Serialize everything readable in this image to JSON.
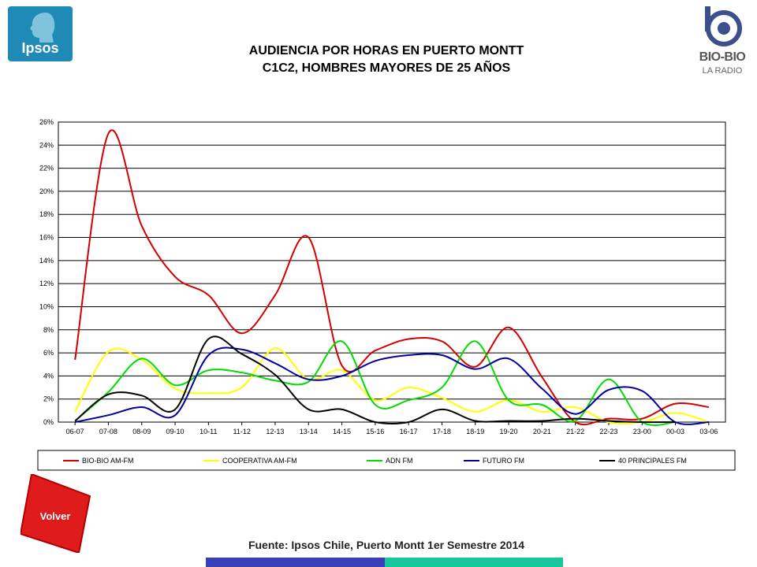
{
  "header": {
    "title_line1": "AUDIENCIA POR HORAS EN PUERTO MONTT",
    "title_line2": "C1C2, HOMBRES MAYORES DE 25 AÑOS"
  },
  "logos": {
    "ipsos": "Ipsos",
    "biobio_line1": "BIO-BIO",
    "biobio_line2": "LA RADIO"
  },
  "nav": {
    "back_label": "Volver"
  },
  "footer": {
    "source": "Fuente: Ipsos Chile, Puerto Montt 1er Semestre 2014"
  },
  "colors": {
    "ipsos_blue": "#1f8ab5",
    "button_red": "#e01b1b",
    "bar_left": "#3a3fb8",
    "bar_right": "#19c89a"
  },
  "chart_data": {
    "type": "line",
    "categories": [
      "06-07",
      "07-08",
      "08-09",
      "09-10",
      "10-11",
      "11-12",
      "12-13",
      "13-14",
      "14-15",
      "15-16",
      "16-17",
      "17-18",
      "18-19",
      "19-20",
      "20-21",
      "21-22",
      "22-23",
      "23-00",
      "00-03",
      "03-06"
    ],
    "y_ticks": [
      "0%",
      "2%",
      "4%",
      "6%",
      "8%",
      "10%",
      "12%",
      "14%",
      "16%",
      "18%",
      "20%",
      "22%",
      "24%",
      "26%"
    ],
    "ylim": [
      0,
      26
    ],
    "grid": true,
    "legend_position": "bottom",
    "series": [
      {
        "name": "BIO-BIO AM-FM",
        "color": "#d40000",
        "values": [
          5.4,
          25.0,
          17.0,
          12.6,
          11.0,
          7.7,
          11.0,
          16.0,
          4.9,
          6.2,
          7.2,
          7.0,
          4.8,
          8.2,
          3.9,
          0.0,
          0.3,
          0.3,
          1.6,
          1.3
        ]
      },
      {
        "name": "COOPERATIVA AM-FM",
        "color": "#ffff00",
        "values": [
          0.9,
          6.1,
          5.4,
          2.9,
          2.5,
          3.0,
          6.4,
          3.7,
          4.5,
          1.9,
          3.0,
          2.1,
          0.9,
          1.9,
          0.9,
          1.3,
          0.0,
          0.0,
          0.8,
          0.0
        ]
      },
      {
        "name": "ADN FM",
        "color": "#00dd00",
        "values": [
          0.1,
          2.6,
          5.5,
          3.2,
          4.5,
          4.3,
          3.6,
          3.5,
          7.0,
          1.5,
          1.9,
          3.0,
          7.0,
          1.9,
          1.5,
          0.1,
          3.7,
          0.0,
          0.0,
          null
        ]
      },
      {
        "name": "FUTURO FM",
        "color": "#00009f",
        "values": [
          0.0,
          0.6,
          1.3,
          0.6,
          5.8,
          6.3,
          5.1,
          3.7,
          4.0,
          5.3,
          5.8,
          5.8,
          4.6,
          5.5,
          2.9,
          0.7,
          2.8,
          2.7,
          0.0,
          0.0
        ]
      },
      {
        "name": "40 PRINCIPALES FM",
        "color": "#000000",
        "values": [
          0.1,
          2.4,
          2.3,
          1.1,
          7.2,
          5.9,
          4.1,
          1.1,
          1.1,
          0.0,
          0.0,
          1.1,
          0.1,
          0.1,
          0.1,
          0.3,
          0.1,
          0.0,
          0.0,
          null
        ]
      }
    ]
  }
}
